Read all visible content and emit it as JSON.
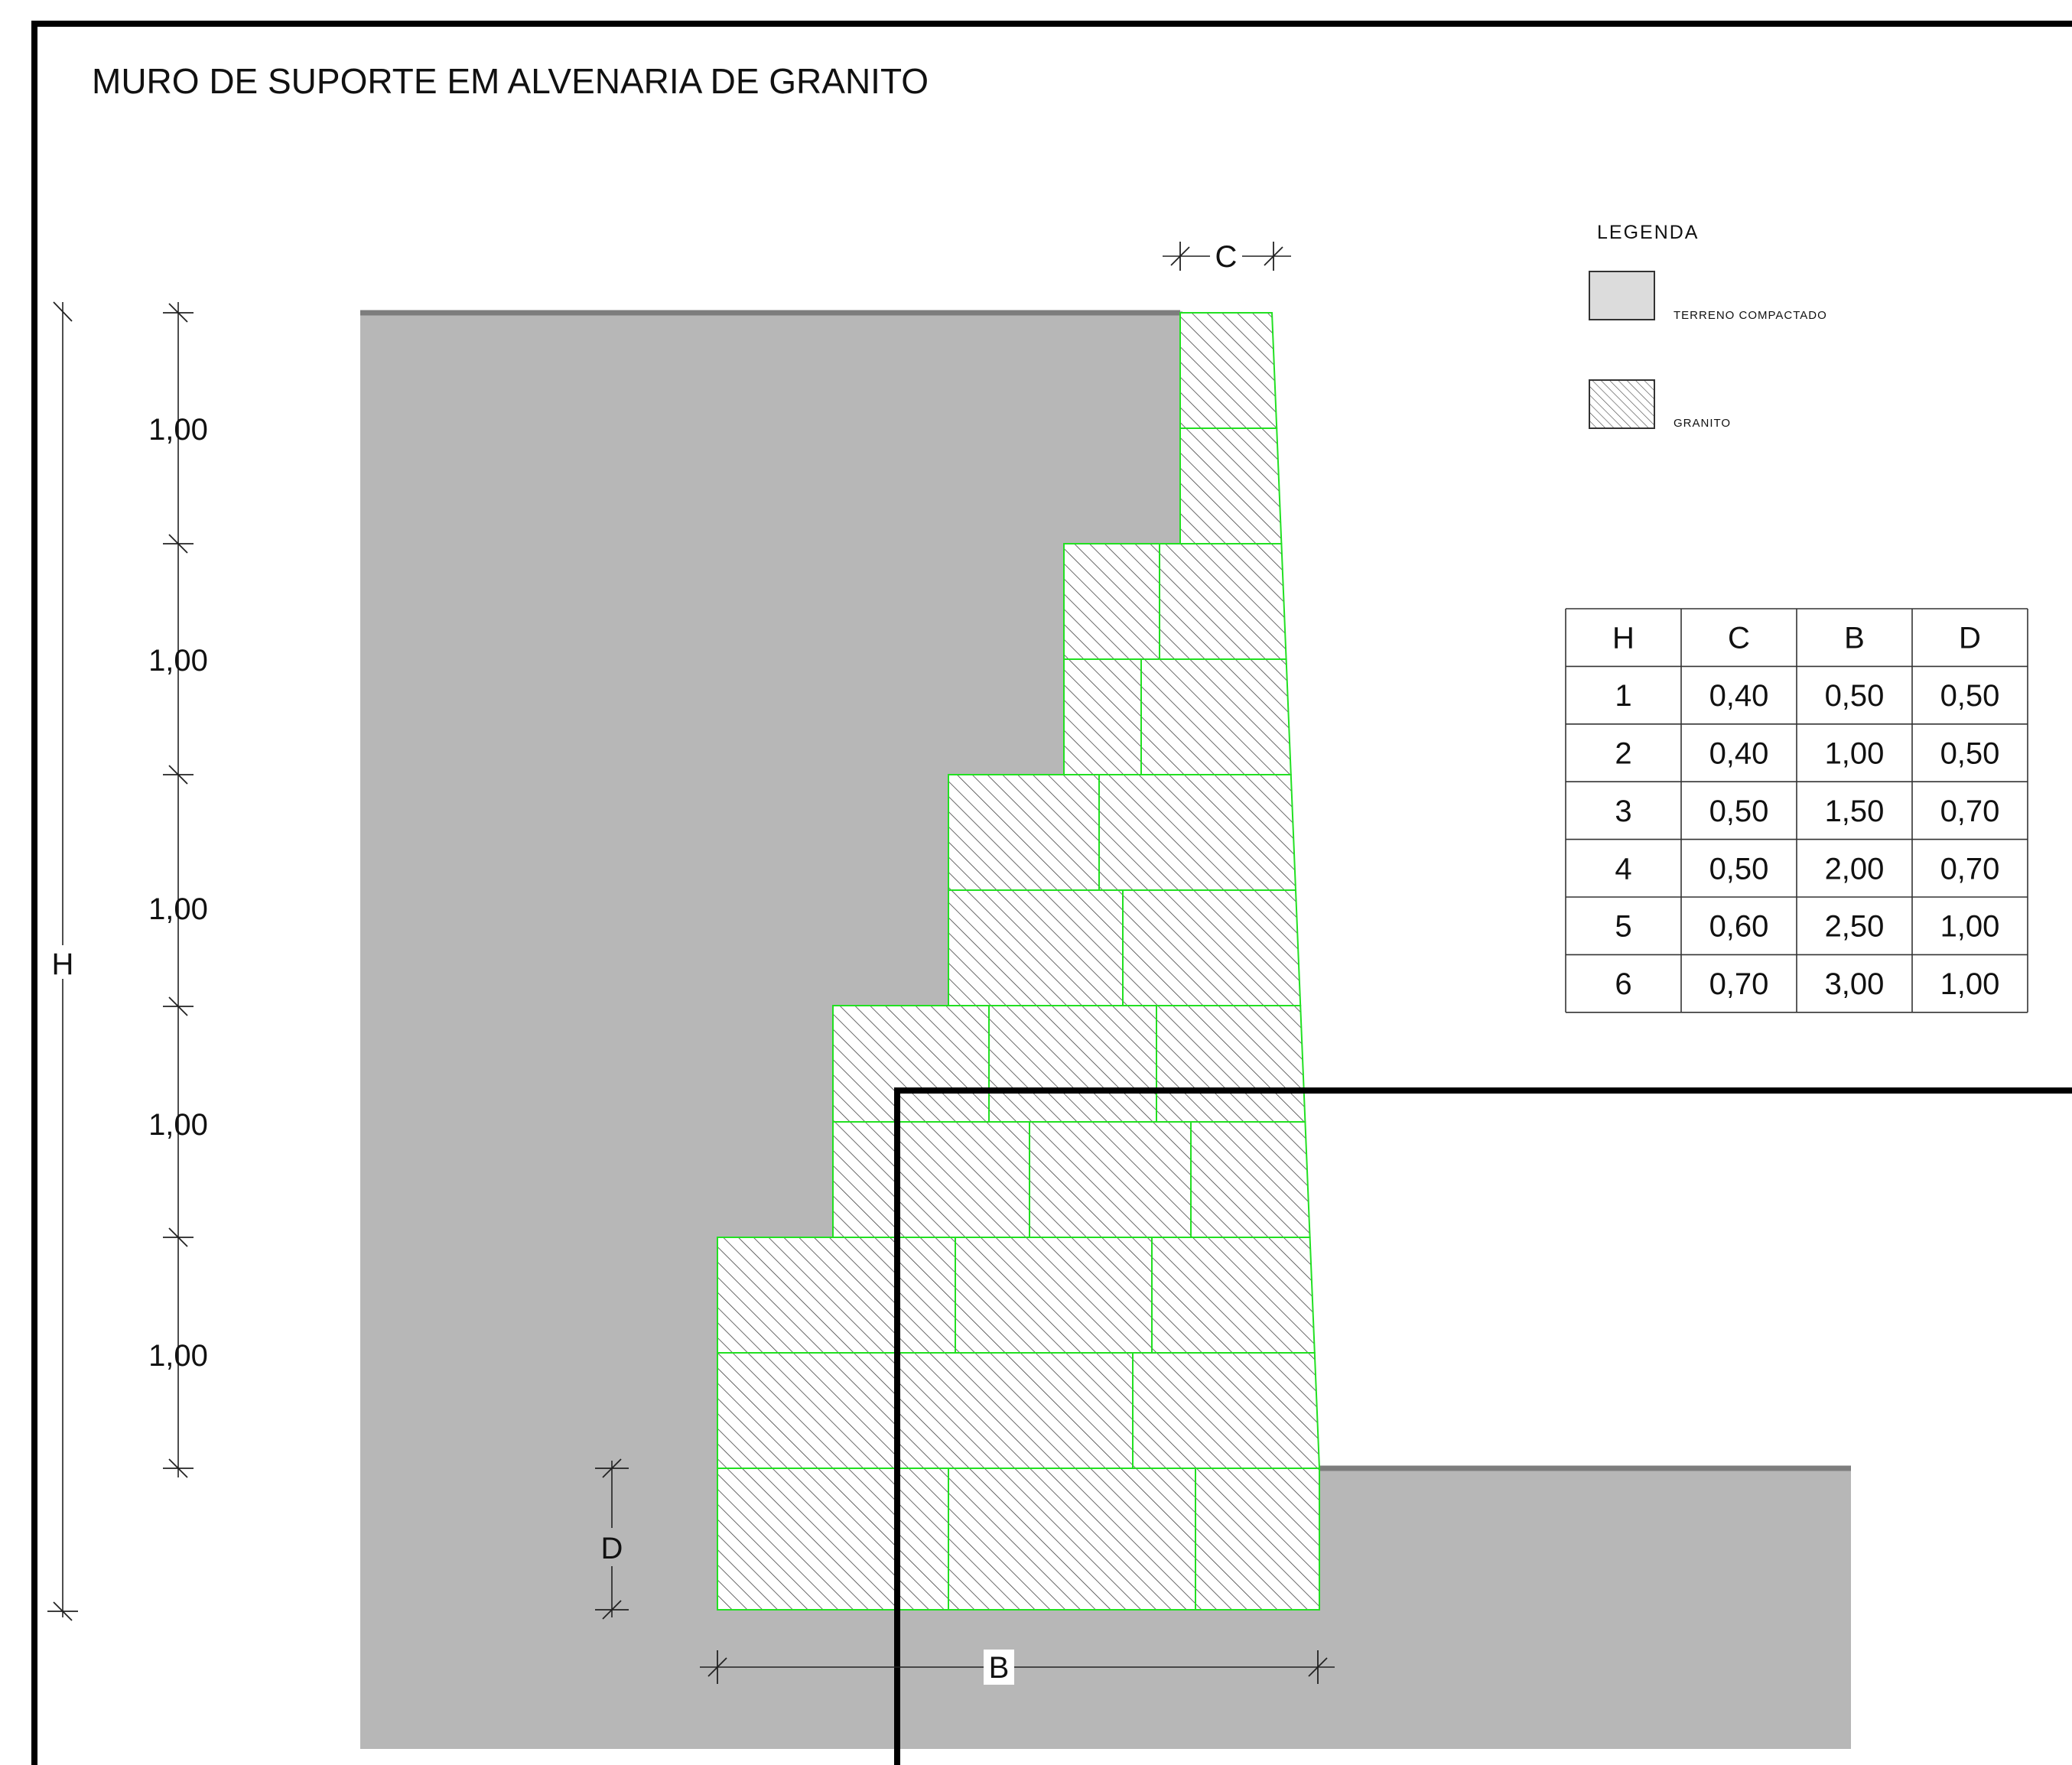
{
  "title": "MURO DE SUPORTE EM ALVENARIA DE GRANITO",
  "dimensions": {
    "segment_labels": [
      "1,00",
      "1,00",
      "1,00",
      "1,00",
      "1,00"
    ],
    "height_label": "H",
    "crest_label": "C",
    "base_label": "B",
    "foundation_label": "D"
  },
  "legend": {
    "title": "LEGENDA",
    "items": [
      {
        "label": "TERRENO COMPACTADO",
        "swatch": "solid-grey"
      },
      {
        "label": "GRANITO",
        "swatch": "hatch"
      }
    ]
  },
  "table": {
    "headers": [
      "H",
      "C",
      "B",
      "D"
    ],
    "rows": [
      [
        "1",
        "0,40",
        "0,50",
        "0,50"
      ],
      [
        "2",
        "0,40",
        "1,00",
        "0,50"
      ],
      [
        "3",
        "0,50",
        "1,50",
        "0,70"
      ],
      [
        "4",
        "0,50",
        "2,00",
        "0,70"
      ],
      [
        "5",
        "0,60",
        "2,50",
        "1,00"
      ],
      [
        "6",
        "0,70",
        "3,00",
        "1,00"
      ]
    ]
  },
  "colors": {
    "soil": "#b7b7b7",
    "block_outline": "#22e022",
    "hatch_line": "#444444",
    "frame": "#000000",
    "legend_swatch": "#dcdcdc"
  }
}
